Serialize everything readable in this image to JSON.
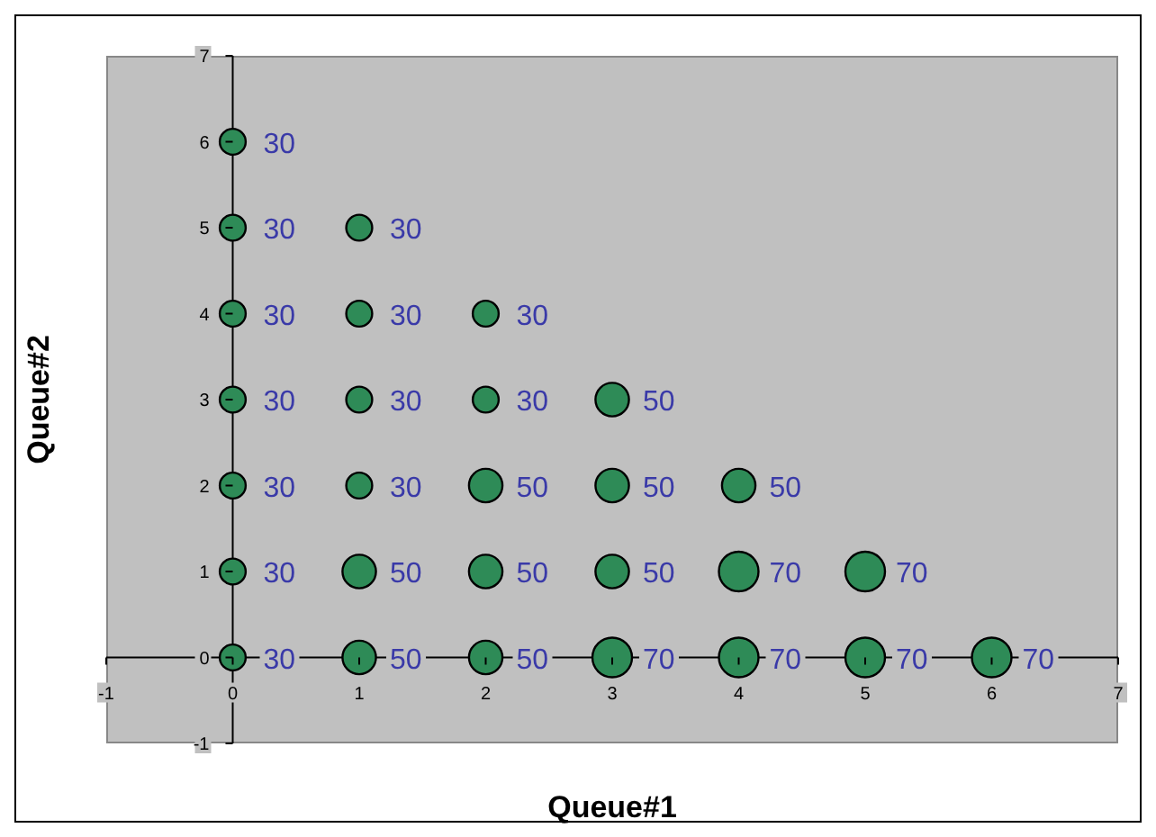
{
  "chart_data": {
    "type": "bubble",
    "xlabel": "Queue#1",
    "ylabel": "Queue#2",
    "x": [
      0,
      0,
      1,
      0,
      1,
      2,
      0,
      1,
      2,
      3,
      0,
      1,
      2,
      3,
      4,
      0,
      1,
      2,
      3,
      4,
      5,
      0,
      1,
      2,
      3,
      4,
      5,
      6
    ],
    "values": [
      6,
      5,
      5,
      4,
      4,
      4,
      3,
      3,
      3,
      3,
      2,
      2,
      2,
      2,
      2,
      1,
      1,
      1,
      1,
      1,
      1,
      0,
      0,
      0,
      0,
      0,
      0,
      0
    ],
    "sizes": [
      30,
      30,
      30,
      30,
      30,
      30,
      30,
      30,
      30,
      50,
      30,
      30,
      50,
      50,
      50,
      30,
      50,
      50,
      50,
      70,
      70,
      30,
      50,
      50,
      70,
      70,
      70,
      70
    ],
    "value_labels": [
      "30",
      "30",
      "30",
      "30",
      "30",
      "30",
      "30",
      "30",
      "30",
      "50",
      "30",
      "30",
      "50",
      "50",
      "50",
      "30",
      "50",
      "50",
      "50",
      "70",
      "70",
      "30",
      "50",
      "50",
      "70",
      "70",
      "70",
      "70"
    ],
    "color": "#2e8b57",
    "xlim": [
      -1,
      7
    ],
    "ylim": [
      -1,
      7
    ],
    "xticks": [
      -1,
      0,
      1,
      2,
      3,
      4,
      5,
      6,
      7
    ],
    "yticks": [
      -1,
      0,
      1,
      2,
      3,
      4,
      5,
      6,
      7
    ]
  }
}
